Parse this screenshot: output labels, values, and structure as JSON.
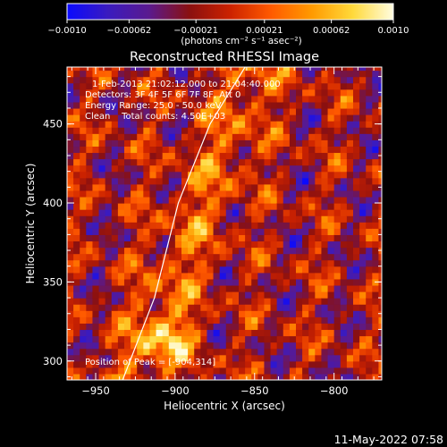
{
  "colorbar": {
    "colors": [
      "#0a0aff",
      "#3a1bbf",
      "#5a1a8f",
      "#8a1010",
      "#cc2200",
      "#ff5a00",
      "#ff9a00",
      "#ffd93a",
      "#fffde0"
    ],
    "tick_labels": [
      "-0.0010",
      "-0.00062",
      "-0.00021",
      "0.00021",
      "0.00062",
      "0.0010"
    ],
    "units_label": "(photons cm⁻² s⁻¹ asec⁻²)"
  },
  "chart": {
    "title": "Reconstructed RHESSI Image",
    "info_lines": [
      "1-Feb-2013 21:02:12.000 to 21:04:40.000",
      "Detectors: 3F 4F 5F 6F 7F 8F, Att 0",
      "Energy Range: 25.0 - 50.0 keV",
      "Clean    Total counts: 4.50E+03"
    ],
    "peak_label": "Position of Peak = [-904,314]",
    "footer_date": "11-May-2022 07:58"
  },
  "chart_data": {
    "type": "heatmap",
    "title": "Reconstructed RHESSI Image",
    "xlabel": "Heliocentric X (arcsec)",
    "ylabel": "Heliocentric Y (arcsec)",
    "xlim": [
      -968,
      -770
    ],
    "ylim": [
      288,
      486
    ],
    "x_ticks": [
      -950,
      -900,
      -850,
      -800
    ],
    "y_ticks": [
      300,
      350,
      400,
      450
    ],
    "x_tick_labels": [
      "−950",
      "−900",
      "−850",
      "−800"
    ],
    "y_tick_labels": [
      "300",
      "350",
      "400",
      "450"
    ],
    "value_range": [
      -0.001,
      0.001
    ],
    "peak_position": [
      -904,
      314
    ],
    "limb_curve": [
      [
        -933,
        288
      ],
      [
        -913,
        340
      ],
      [
        -898,
        400
      ],
      [
        -878,
        450
      ],
      [
        -856,
        486
      ]
    ],
    "pixel_size_arcsec": 4,
    "grid": false
  }
}
